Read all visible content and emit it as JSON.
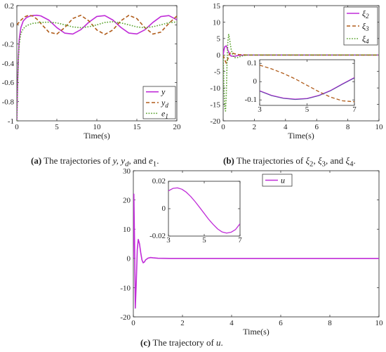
{
  "captions": {
    "a": {
      "tag": "(a)",
      "text": "The trajectories of",
      "vars": "y, y",
      "sub_d": "d",
      "and": ", and",
      "e": "e",
      "sub_1": "1",
      "end": "."
    },
    "b": {
      "tag": "(b)",
      "text": "The trajectories of",
      "v1": "ξ",
      "s1": "2",
      "v2": "ξ",
      "s2": "3",
      "and": ", and",
      "v3": "ξ",
      "s3": "4",
      "end": "."
    },
    "c": {
      "tag": "(c)",
      "text": "The trajectory of",
      "var": "u",
      "end": "."
    }
  },
  "chart_data": [
    {
      "id": "a",
      "type": "line",
      "title": "",
      "xlabel": "Time(s)",
      "ylabel": "",
      "xlim": [
        0,
        20
      ],
      "ylim": [
        -1,
        0.2
      ],
      "xticks": [
        "0",
        "5",
        "10",
        "15",
        "20"
      ],
      "yticks": [
        "-1",
        "-0.8",
        "-0.6",
        "-0.4",
        "-0.2",
        "0",
        "0.2"
      ],
      "grid": false,
      "legend": "bottom-right",
      "series": [
        {
          "name": "y",
          "sub": "",
          "color": "#c02cd8",
          "style": "solid",
          "x": [
            0,
            0.1,
            0.2,
            0.3,
            0.5,
            0.8,
            1.2,
            1.6,
            2.0,
            2.5,
            3.0,
            4.0,
            5.0,
            6.0,
            7.0,
            8.0,
            9.0,
            10.0,
            11.0,
            12.0,
            13.0,
            14.0,
            15.0,
            16.0,
            17.0,
            18.0,
            19.0,
            20.0
          ],
          "y": [
            -1.0,
            -0.6,
            -0.32,
            -0.15,
            -0.03,
            0.04,
            0.075,
            0.09,
            0.097,
            0.1,
            0.093,
            0.049,
            -0.029,
            -0.087,
            -0.096,
            -0.05,
            0.027,
            0.087,
            0.096,
            0.05,
            -0.027,
            -0.086,
            -0.095,
            -0.052,
            0.025,
            0.086,
            0.096,
            0.052
          ]
        },
        {
          "name": "y",
          "sub": "d",
          "color": "#b05c1a",
          "style": "dashed",
          "x": [
            0,
            0.5,
            1.0,
            1.5,
            2.0,
            2.5,
            3.0,
            4.0,
            5.0,
            6.0,
            7.0,
            8.0,
            9.0,
            10.0,
            11.0,
            12.0,
            13.0,
            14.0,
            15.0,
            16.0,
            17.0,
            18.0,
            19.0,
            20.0
          ],
          "y": [
            0.0,
            0.048,
            0.084,
            0.1,
            0.091,
            0.06,
            0.014,
            -0.076,
            -0.096,
            -0.028,
            0.066,
            0.099,
            0.041,
            -0.054,
            -0.1,
            -0.054,
            0.042,
            0.099,
            0.065,
            -0.029,
            -0.096,
            -0.076,
            0.015,
            0.091
          ]
        },
        {
          "name": "e",
          "sub": "1",
          "color": "#57a12a",
          "style": "dotted",
          "x": [
            0,
            0.1,
            0.2,
            0.3,
            0.5,
            0.8,
            1.2,
            1.6,
            2.0,
            3.0,
            4.0,
            5.0,
            6.0,
            7.0,
            8.0,
            9.0,
            10.0,
            11.0,
            12.0,
            13.0,
            14.0,
            15.0,
            16.0,
            17.0,
            18.0,
            19.0,
            20.0
          ],
          "y": [
            -1.0,
            -0.6,
            -0.35,
            -0.2,
            -0.09,
            -0.04,
            -0.01,
            0.005,
            0.015,
            0.025,
            0.028,
            0.02,
            0.0,
            -0.022,
            -0.03,
            -0.02,
            0.0,
            0.025,
            0.032,
            0.02,
            0.0,
            -0.022,
            -0.03,
            -0.02,
            0.0,
            0.022,
            0.03
          ]
        }
      ]
    },
    {
      "id": "b",
      "type": "line",
      "title": "",
      "xlabel": "Time(s)",
      "ylabel": "",
      "xlim": [
        0,
        10
      ],
      "ylim": [
        -20,
        15
      ],
      "xticks": [
        "0",
        "2",
        "4",
        "6",
        "8",
        "10"
      ],
      "yticks": [
        "-20",
        "-15",
        "-10",
        "-5",
        "0",
        "5",
        "10",
        "15"
      ],
      "grid": false,
      "legend": "top-right",
      "series": [
        {
          "name": "ξ",
          "sub": "2",
          "color": "#c02cd8",
          "style": "solid",
          "x": [
            0,
            0.05,
            0.1,
            0.2,
            0.3,
            0.4,
            0.5,
            0.7,
            1.0,
            1.5,
            2.0,
            10.0
          ],
          "y": [
            0,
            1.5,
            2.5,
            2.8,
            1.5,
            0.4,
            -0.3,
            -0.4,
            -0.1,
            0.0,
            0.0,
            0.0
          ]
        },
        {
          "name": "ξ",
          "sub": "3",
          "color": "#b05c1a",
          "style": "dashed",
          "x": [
            0,
            0.1,
            0.2,
            0.3,
            0.4,
            0.5,
            0.7,
            1.0,
            1.5,
            2.0,
            10.0
          ],
          "y": [
            0,
            -1.5,
            -2.5,
            -1.2,
            0.3,
            0.8,
            0.4,
            0.1,
            0.0,
            0.0,
            0.0
          ]
        },
        {
          "name": "ξ",
          "sub": "4",
          "color": "#57a12a",
          "style": "dotted",
          "x": [
            0,
            0.05,
            0.1,
            0.15,
            0.2,
            0.25,
            0.3,
            0.35,
            0.4,
            0.5,
            0.6,
            0.7,
            0.9,
            1.2,
            1.5,
            2.0,
            10.0
          ],
          "y": [
            0,
            -10,
            -16,
            -17,
            -12,
            -2,
            4,
            6.2,
            5.2,
            2.0,
            0.2,
            -0.8,
            -0.8,
            -0.3,
            0.0,
            0.0,
            0.0
          ]
        }
      ],
      "inset": {
        "xlim": [
          3,
          7
        ],
        "ylim": [
          -0.13,
          0.12
        ],
        "xticks": [
          "3",
          "5",
          "7"
        ],
        "yticks": [
          "-0.1",
          "0",
          "0.1"
        ],
        "series": [
          {
            "color": "#c02cd8",
            "style": "solid",
            "x": [
              3,
              3.5,
              4,
              4.5,
              5,
              5.5,
              6,
              6.5,
              7
            ],
            "y": [
              -0.05,
              -0.075,
              -0.09,
              -0.096,
              -0.092,
              -0.075,
              -0.048,
              -0.012,
              0.022
            ]
          },
          {
            "color": "#b05c1a",
            "style": "dashed",
            "x": [
              3,
              3.5,
              4,
              4.5,
              5,
              5.5,
              6,
              6.5,
              7
            ],
            "y": [
              0.09,
              0.07,
              0.045,
              0.015,
              -0.02,
              -0.055,
              -0.085,
              -0.105,
              -0.11
            ]
          },
          {
            "color": "#4a4a9a",
            "style": "solid",
            "width": 0.8,
            "x": [
              3,
              3.5,
              4,
              4.5,
              5,
              5.5,
              6,
              6.5,
              7
            ],
            "y": [
              -0.052,
              -0.077,
              -0.092,
              -0.098,
              -0.094,
              -0.077,
              -0.05,
              -0.014,
              0.02
            ]
          }
        ]
      }
    },
    {
      "id": "c",
      "type": "line",
      "title": "",
      "xlabel": "Time(s)",
      "ylabel": "",
      "xlim": [
        0,
        10
      ],
      "ylim": [
        -20,
        30
      ],
      "xticks": [
        "0",
        "2",
        "4",
        "6",
        "8",
        "10"
      ],
      "yticks": [
        "-20",
        "-10",
        "0",
        "10",
        "20",
        "30"
      ],
      "grid": false,
      "legend": "top-right",
      "series": [
        {
          "name": "u",
          "sub": "",
          "color": "#c02cd8",
          "style": "solid",
          "x": [
            0,
            0.02,
            0.05,
            0.08,
            0.12,
            0.16,
            0.2,
            0.25,
            0.3,
            0.35,
            0.4,
            0.45,
            0.5,
            0.6,
            0.7,
            0.8,
            1.0,
            1.5,
            10.0
          ],
          "y": [
            0,
            22,
            5,
            -17,
            -8,
            3,
            6.5,
            5,
            2,
            -0.5,
            -1.5,
            -1.2,
            -0.5,
            0.1,
            0.3,
            0.2,
            0.05,
            0.0,
            0.0
          ]
        }
      ],
      "inset": {
        "xlim": [
          3,
          7
        ],
        "ylim": [
          -0.02,
          0.02
        ],
        "xticks": [
          "3",
          "5",
          "7"
        ],
        "yticks": [
          "-0.02",
          "0",
          "0.02"
        ],
        "series": [
          {
            "color": "#c02cd8",
            "style": "solid",
            "x": [
              3,
              3.25,
              3.5,
              3.75,
              4,
              4.25,
              4.5,
              4.75,
              5,
              5.25,
              5.5,
              5.75,
              6,
              6.25,
              6.5,
              6.75,
              7
            ],
            "y": [
              0.013,
              0.0148,
              0.0152,
              0.0142,
              0.012,
              0.0088,
              0.005,
              0.0008,
              -0.0035,
              -0.0078,
              -0.0115,
              -0.0148,
              -0.017,
              -0.0178,
              -0.0172,
              -0.0152,
              -0.011
            ]
          }
        ]
      }
    }
  ]
}
